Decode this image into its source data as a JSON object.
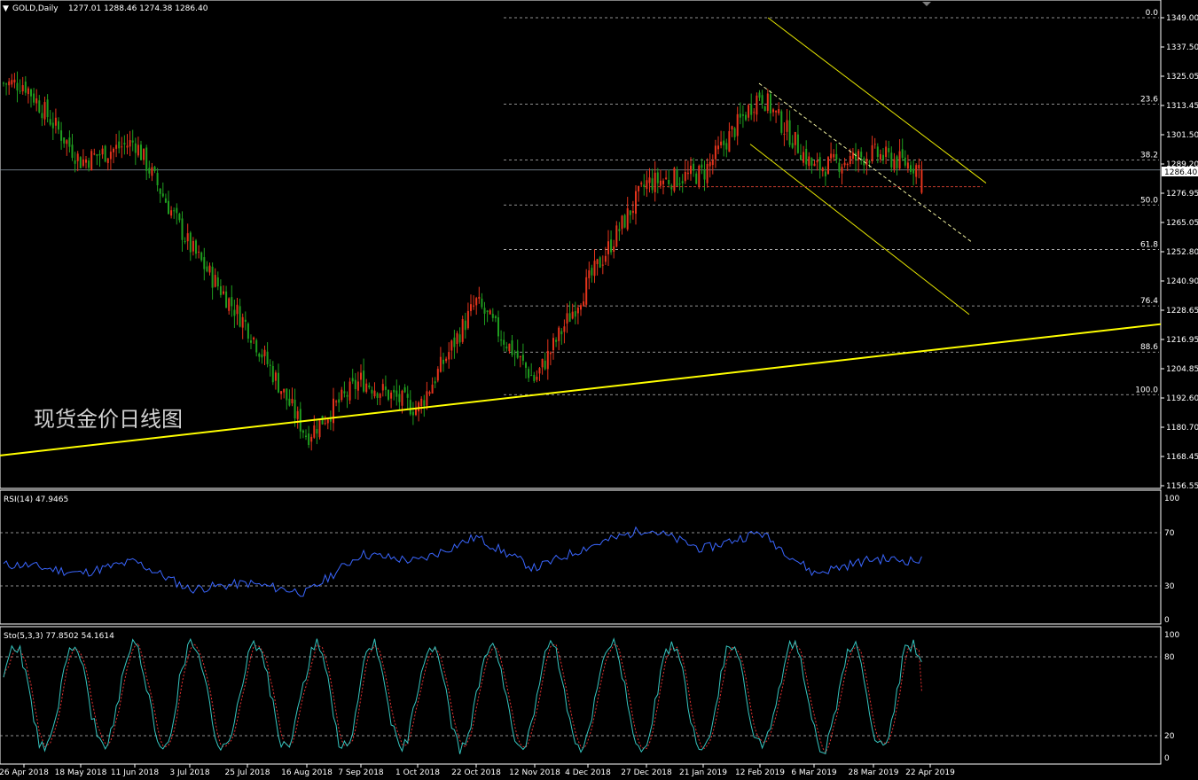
{
  "symbol_header": {
    "symbol": "GOLD,Daily",
    "ohlc": "1277.01 1288.46 1274.38 1286.40"
  },
  "watermark": "现货金价日线图",
  "current_price": "1286.40",
  "colors": {
    "up": "#e5341c",
    "down": "#1f9e1f",
    "grid": "#bfbfbf",
    "trendline": "#ffff00",
    "channel": "#e6e600",
    "support_dash": "#c0392b",
    "rsi": "#3a66ff",
    "sto_main": "#35c6c0",
    "sto_signal": "#e03030",
    "axis_line": "#ffffff"
  },
  "main_axis_labels": [
    "1349.00",
    "1337.50",
    "1325.05",
    "1313.45",
    "1301.50",
    "1289.20",
    "1276.95",
    "1265.05",
    "1252.80",
    "1240.90",
    "1228.65",
    "1216.95",
    "1204.85",
    "1192.60",
    "1180.70",
    "1168.45",
    "1156.55"
  ],
  "fib_levels": [
    {
      "label": "0.0",
      "price": 1349.0
    },
    {
      "label": "23.6",
      "price": 1313.45
    },
    {
      "label": "38.2",
      "price": 1290.5
    },
    {
      "label": "50.0",
      "price": 1272.0
    },
    {
      "label": "61.8",
      "price": 1253.7
    },
    {
      "label": "76.4",
      "price": 1230.5
    },
    {
      "label": "88.6",
      "price": 1211.5
    },
    {
      "label": "100.0",
      "price": 1194.0
    }
  ],
  "rsi_panel": {
    "label": "RSI(14) 47.9465",
    "axis_labels": [
      "100",
      "70",
      "30",
      "0"
    ]
  },
  "sto_panel": {
    "label": "Sto(5,3,3) 77.8502 54.1614",
    "axis_labels": [
      "100",
      "80",
      "20",
      "0"
    ]
  },
  "date_labels": [
    "26 Apr 2018",
    "18 May 2018",
    "11 Jun 2018",
    "3 Jul 2018",
    "25 Jul 2018",
    "16 Aug 2018",
    "7 Sep 2018",
    "1 Oct 2018",
    "22 Oct 2018",
    "12 Nov 2018",
    "4 Dec 2018",
    "27 Dec 2018",
    "21 Jan 2019",
    "12 Feb 2019",
    "6 Mar 2019",
    "28 Mar 2019",
    "22 Apr 2019"
  ],
  "chart_data": {
    "type": "candlestick",
    "title": "GOLD,Daily",
    "ylim": [
      1156.55,
      1352.0
    ],
    "note_trend": "uptrend support line; descending channel from Feb 2019 high",
    "trend_support": {
      "from_price": 1169.0,
      "to_price": 1223.0
    },
    "price_waypoints": [
      {
        "date": "26 Apr 2018",
        "close": 1322
      },
      {
        "date": "18 May 2018",
        "close": 1290
      },
      {
        "date": "11 Jun 2018",
        "close": 1298
      },
      {
        "date": "3 Jul 2018",
        "close": 1255
      },
      {
        "date": "25 Jul 2018",
        "close": 1222
      },
      {
        "date": "16 Aug 2018",
        "close": 1177
      },
      {
        "date": "7 Sep 2018",
        "close": 1200
      },
      {
        "date": "1 Oct 2018",
        "close": 1188
      },
      {
        "date": "22 Oct 2018",
        "close": 1232
      },
      {
        "date": "12 Nov 2018",
        "close": 1200
      },
      {
        "date": "4 Dec 2018",
        "close": 1240
      },
      {
        "date": "27 Dec 2018",
        "close": 1281
      },
      {
        "date": "21 Jan 2019",
        "close": 1285
      },
      {
        "date": "12 Feb 2019",
        "close": 1318
      },
      {
        "date": "6 Mar 2019",
        "close": 1287
      },
      {
        "date": "28 Mar 2019",
        "close": 1293
      },
      {
        "date": "22 Apr 2019",
        "close": 1286.4
      }
    ],
    "rsi_waypoints": [
      {
        "date": "26 Apr 2018",
        "value": 45
      },
      {
        "date": "18 May 2018",
        "value": 38
      },
      {
        "date": "11 Jun 2018",
        "value": 48
      },
      {
        "date": "3 Jul 2018",
        "value": 25
      },
      {
        "date": "25 Jul 2018",
        "value": 30
      },
      {
        "date": "16 Aug 2018",
        "value": 22
      },
      {
        "date": "7 Sep 2018",
        "value": 54
      },
      {
        "date": "1 Oct 2018",
        "value": 48
      },
      {
        "date": "22 Oct 2018",
        "value": 68
      },
      {
        "date": "12 Nov 2018",
        "value": 42
      },
      {
        "date": "4 Dec 2018",
        "value": 60
      },
      {
        "date": "27 Dec 2018",
        "value": 75
      },
      {
        "date": "21 Jan 2019",
        "value": 58
      },
      {
        "date": "12 Feb 2019",
        "value": 72
      },
      {
        "date": "6 Mar 2019",
        "value": 38
      },
      {
        "date": "28 Mar 2019",
        "value": 50
      },
      {
        "date": "22 Apr 2019",
        "value": 47.9465
      }
    ],
    "sto_last": {
      "main": 77.8502,
      "signal": 54.1614
    }
  }
}
